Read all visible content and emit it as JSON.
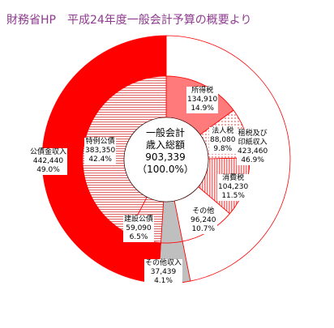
{
  "caption": "財務省HP　平成24年度一般会計予算の概要より",
  "chart_data": {
    "type": "pie",
    "variant": "nested-donut",
    "title": "財務省HP　平成24年度一般会計予算の概要より",
    "center": {
      "title1": "一般会計",
      "title2": "歳入総額",
      "value": "903,339",
      "percent": "（100.0%）"
    },
    "outer": [
      {
        "name": "租税及び印紙収入",
        "line1": "租税及び",
        "line2": "印紙収入",
        "value": 423460,
        "value_text": "423,460",
        "percent": "46.9%",
        "color": "#ffffff"
      },
      {
        "name": "その他収入",
        "value": 37439,
        "value_text": "37,439",
        "percent": "4.1%",
        "color": "#bfbfbf"
      },
      {
        "name": "公債金収入",
        "value": 442440,
        "value_text": "442,440",
        "percent": "49.0%",
        "color": "#ff0000"
      }
    ],
    "inner": [
      {
        "name": "所得税",
        "value": 134910,
        "value_text": "134,910",
        "percent": "14.9%",
        "fill": "solid"
      },
      {
        "name": "法人税",
        "value": 88080,
        "value_text": "88,080",
        "percent": "9.8%",
        "fill": "dots"
      },
      {
        "name": "消費税",
        "value": 104230,
        "value_text": "104,230",
        "percent": "11.5%",
        "fill": "vlines"
      },
      {
        "name": "その他",
        "value": 96240,
        "value_text": "96,240",
        "percent": "10.7%",
        "fill": "white"
      },
      {
        "name": "その他収入",
        "value": 37439,
        "fill": "gray"
      },
      {
        "name": "建設公債",
        "value": 59090,
        "value_text": "59,090",
        "percent": "6.5%",
        "fill": "hlines"
      },
      {
        "name": "特例公債",
        "value": 383350,
        "value_text": "383,350",
        "percent": "42.4%",
        "fill": "hlines"
      }
    ]
  }
}
